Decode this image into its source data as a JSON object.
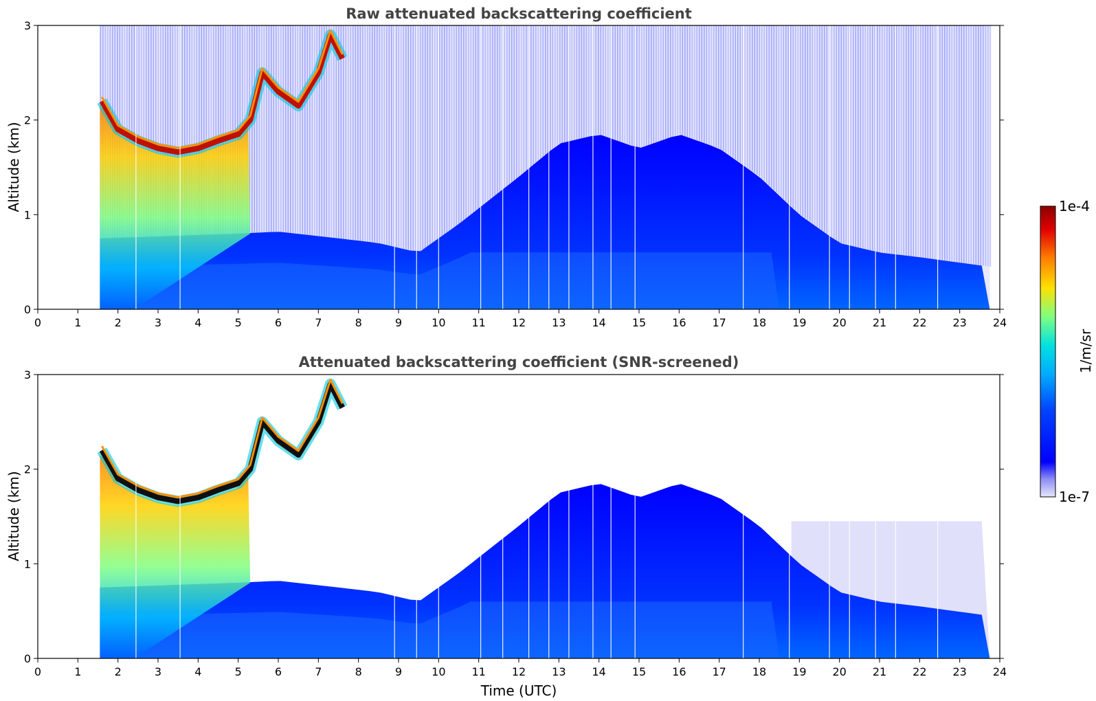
{
  "chart_data": [
    {
      "type": "heatmap",
      "title": "Raw attenuated backscattering coefficient",
      "xlabel": "",
      "ylabel": "Altitude (km)",
      "xlim": [
        0,
        24
      ],
      "ylim": [
        0,
        3
      ],
      "x_ticks": [
        "0",
        "1",
        "2",
        "3",
        "4",
        "5",
        "6",
        "7",
        "8",
        "9",
        "10",
        "11",
        "12",
        "13",
        "14",
        "15",
        "16",
        "17",
        "18",
        "19",
        "20",
        "21",
        "22",
        "23",
        "24"
      ],
      "y_ticks": [
        "0",
        "1",
        "2",
        "3"
      ],
      "data_start_utc": 1.55,
      "data_end_utc": 23.75,
      "cloud_layer": [
        {
          "t": 1.6,
          "alt": 2.2
        },
        {
          "t": 2.0,
          "alt": 1.9
        },
        {
          "t": 2.5,
          "alt": 1.78
        },
        {
          "t": 3.0,
          "alt": 1.7
        },
        {
          "t": 3.5,
          "alt": 1.66
        },
        {
          "t": 4.0,
          "alt": 1.7
        },
        {
          "t": 4.5,
          "alt": 1.78
        },
        {
          "t": 5.0,
          "alt": 1.85
        },
        {
          "t": 5.3,
          "alt": 2.0
        },
        {
          "t": 5.6,
          "alt": 2.5
        },
        {
          "t": 6.0,
          "alt": 2.3
        },
        {
          "t": 6.5,
          "alt": 2.15
        },
        {
          "t": 7.0,
          "alt": 2.5
        },
        {
          "t": 7.3,
          "alt": 2.9
        },
        {
          "t": 7.6,
          "alt": 2.65
        }
      ],
      "boundary_layer_top": [
        {
          "t": 1.6,
          "alt": 0.75
        },
        {
          "t": 5.0,
          "alt": 0.8
        },
        {
          "t": 6.0,
          "alt": 0.82
        },
        {
          "t": 7.5,
          "alt": 0.75
        },
        {
          "t": 8.5,
          "alt": 0.7
        },
        {
          "t": 9.5,
          "alt": 0.6
        },
        {
          "t": 10.5,
          "alt": 0.9
        },
        {
          "t": 12.0,
          "alt": 1.4
        },
        {
          "t": 13.0,
          "alt": 1.75
        },
        {
          "t": 14.0,
          "alt": 1.85
        },
        {
          "t": 15.0,
          "alt": 1.7
        },
        {
          "t": 16.0,
          "alt": 1.85
        },
        {
          "t": 17.0,
          "alt": 1.7
        },
        {
          "t": 18.0,
          "alt": 1.4
        },
        {
          "t": 19.0,
          "alt": 1.0
        },
        {
          "t": 20.0,
          "alt": 0.7
        },
        {
          "t": 21.0,
          "alt": 0.6
        },
        {
          "t": 22.0,
          "alt": 0.55
        },
        {
          "t": 23.75,
          "alt": 0.45
        }
      ]
    },
    {
      "type": "heatmap",
      "title": "Attenuated backscattering coefficient (SNR-screened)",
      "xlabel": "Time (UTC)",
      "ylabel": "Altitude (km)",
      "xlim": [
        0,
        24
      ],
      "ylim": [
        0,
        3
      ],
      "x_ticks": [
        "0",
        "1",
        "2",
        "3",
        "4",
        "5",
        "6",
        "7",
        "8",
        "9",
        "10",
        "11",
        "12",
        "13",
        "14",
        "15",
        "16",
        "17",
        "18",
        "19",
        "20",
        "21",
        "22",
        "23",
        "24"
      ],
      "y_ticks": [
        "0",
        "1",
        "2",
        "3"
      ],
      "data_start_utc": 1.55,
      "data_end_utc": 23.75
    }
  ],
  "colorbar": {
    "label": "1/m/sr",
    "max_label": "1e-4",
    "min_label": "1e-7",
    "colors": [
      "#e6e6fa",
      "#0000ff",
      "#00aaff",
      "#00e0e0",
      "#ffe000",
      "#ff6000",
      "#8b0000"
    ]
  }
}
